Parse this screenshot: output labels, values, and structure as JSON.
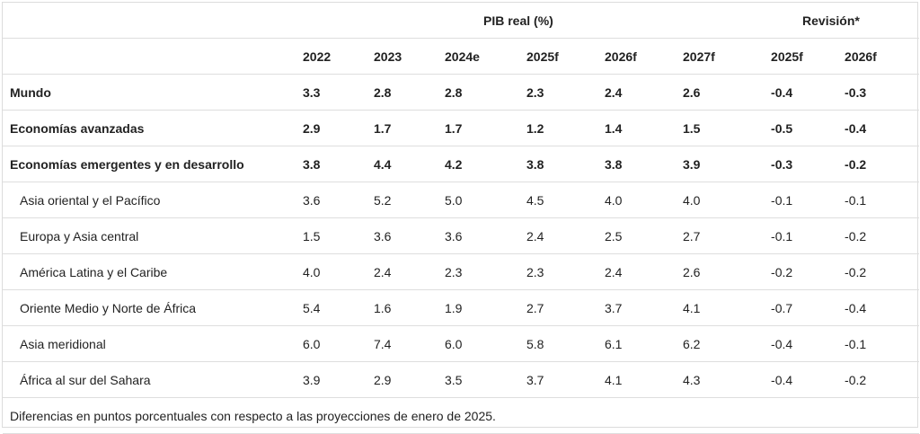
{
  "header": {
    "pib_group": "PIB real (%)",
    "revision_group": "Revisión*",
    "years": [
      "2022",
      "2023",
      "2024e",
      "2025f",
      "2026f",
      "2027f",
      "2025f",
      "2026f"
    ]
  },
  "rows": [
    {
      "label": "Mundo",
      "bold": true,
      "indent": false,
      "values": [
        "3.3",
        "2.8",
        "2.8",
        "2.3",
        "2.4",
        "2.6",
        "-0.4",
        "-0.3"
      ]
    },
    {
      "label": "Economías avanzadas",
      "bold": true,
      "indent": false,
      "values": [
        "2.9",
        "1.7",
        "1.7",
        "1.2",
        "1.4",
        "1.5",
        "-0.5",
        "-0.4"
      ]
    },
    {
      "label": "Economías emergentes y en desarrollo",
      "bold": true,
      "indent": false,
      "values": [
        "3.8",
        "4.4",
        "4.2",
        "3.8",
        "3.8",
        "3.9",
        "-0.3",
        "-0.2"
      ]
    },
    {
      "label": "Asia oriental y el Pacífico",
      "bold": false,
      "indent": true,
      "values": [
        "3.6",
        "5.2",
        "5.0",
        "4.5",
        "4.0",
        "4.0",
        "-0.1",
        "-0.1"
      ]
    },
    {
      "label": "Europa y Asia central",
      "bold": false,
      "indent": true,
      "values": [
        "1.5",
        "3.6",
        "3.6",
        "2.4",
        "2.5",
        "2.7",
        "-0.1",
        "-0.2"
      ]
    },
    {
      "label": "América Latina y el Caribe",
      "bold": false,
      "indent": true,
      "values": [
        "4.0",
        "2.4",
        "2.3",
        "2.3",
        "2.4",
        "2.6",
        "-0.2",
        "-0.2"
      ]
    },
    {
      "label": "Oriente Medio y Norte de África",
      "bold": false,
      "indent": true,
      "values": [
        "5.4",
        "1.6",
        "1.9",
        "2.7",
        "3.7",
        "4.1",
        "-0.7",
        "-0.4"
      ]
    },
    {
      "label": "Asia meridional",
      "bold": false,
      "indent": true,
      "values": [
        "6.0",
        "7.4",
        "6.0",
        "5.8",
        "6.1",
        "6.2",
        "-0.4",
        "-0.1"
      ]
    },
    {
      "label": "África al sur del Sahara",
      "bold": false,
      "indent": true,
      "values": [
        "3.9",
        "2.9",
        "3.5",
        "3.7",
        "4.1",
        "4.3",
        "-0.4",
        "-0.2"
      ]
    }
  ],
  "footnote": "Diferencias en puntos porcentuales con respecto a las proyecciones de enero de 2025."
}
